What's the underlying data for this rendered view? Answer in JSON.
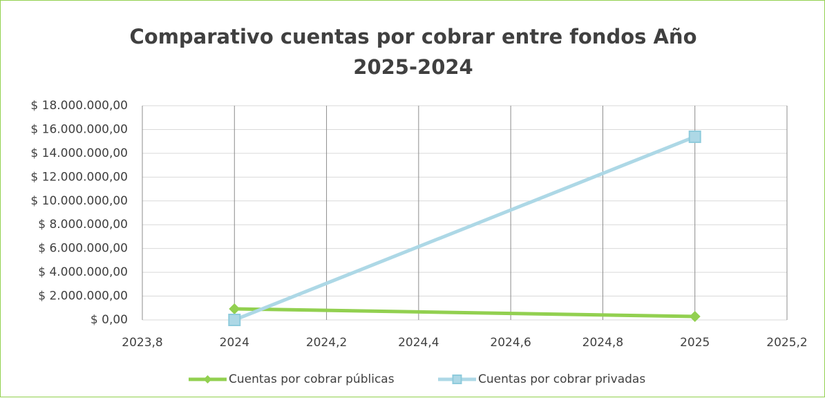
{
  "chart_data": {
    "type": "scatter",
    "title": "Comparativo cuentas por cobrar entre fondos Año 2025-2024",
    "series": [
      {
        "name": "Cuentas por cobrar públicas",
        "color": "#92d050",
        "marker": "diamond",
        "x": [
          2024,
          2025
        ],
        "values": [
          930000,
          290000
        ]
      },
      {
        "name": "Cuentas por cobrar privadas",
        "color": "#add8e6",
        "marker": "square",
        "x": [
          2024,
          2025
        ],
        "values": [
          0,
          15390000
        ]
      }
    ],
    "xlim": [
      2023.8,
      2025.2
    ],
    "xticks": [
      {
        "value": 2023.8,
        "label": "2023,8"
      },
      2024,
      {
        "value": 2024.2,
        "label": "2024,2"
      },
      {
        "value": 2024.4,
        "label": "2024,4"
      },
      {
        "value": 2024.6,
        "label": "2024,6"
      },
      {
        "value": 2024.8,
        "label": "2024,8"
      },
      2025,
      {
        "value": 2025.2,
        "label": "2025,2"
      }
    ],
    "ylim": [
      0,
      18000000
    ],
    "yticks": [
      {
        "value": 0,
        "label": "$ 0,00"
      },
      {
        "value": 2000000,
        "label": "$ 2.000.000,00"
      },
      {
        "value": 4000000,
        "label": "$ 4.000.000,00"
      },
      {
        "value": 6000000,
        "label": "$ 6.000.000,00"
      },
      {
        "value": 8000000,
        "label": "$ 8.000.000,00"
      },
      {
        "value": 10000000,
        "label": "$ 10.000.000,00"
      },
      {
        "value": 12000000,
        "label": "$ 12.000.000,00"
      },
      {
        "value": 14000000,
        "label": "$ 14.000.000,00"
      },
      {
        "value": 16000000,
        "label": "$ 16.000.000,00"
      },
      {
        "value": 18000000,
        "label": "$ 18.000.000,00"
      }
    ],
    "grid": true,
    "legend": "bottom"
  }
}
